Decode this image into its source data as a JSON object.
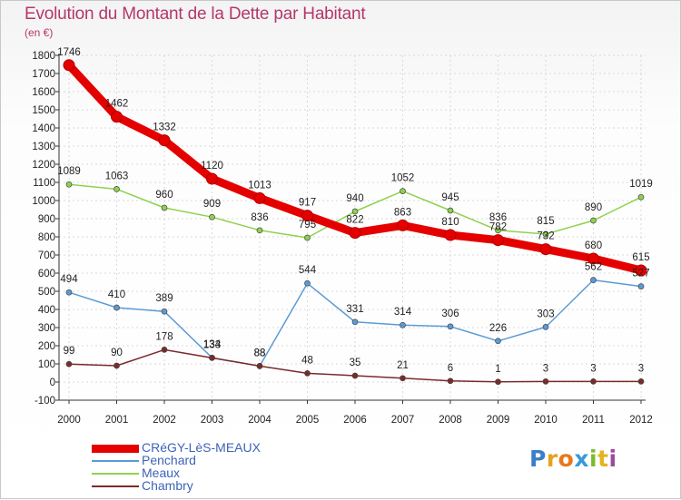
{
  "title": "Evolution du Montant de la Dette par Habitant",
  "unit_label": "(en €)",
  "brand": {
    "letters": [
      "P",
      "r",
      "o",
      "x",
      "i",
      "t",
      "i"
    ],
    "colors": [
      "#3a7fc8",
      "#e7a21c",
      "#e8791a",
      "#3a9ad9",
      "#7cba2e",
      "#e6b422",
      "#9c4a9e"
    ]
  },
  "chart_data": {
    "type": "line",
    "x": [
      "2000",
      "2001",
      "2002",
      "2003",
      "2004",
      "2005",
      "2006",
      "2007",
      "2008",
      "2009",
      "2010",
      "2011",
      "2012"
    ],
    "ylim": [
      -100,
      1800
    ],
    "yticks": [
      "-100",
      "0",
      "100",
      "200",
      "300",
      "400",
      "500",
      "600",
      "700",
      "800",
      "900",
      "1000",
      "1100",
      "1200",
      "1300",
      "1400",
      "1500",
      "1600",
      "1700",
      "1800"
    ],
    "grid": true,
    "legend_position": "bottom-left",
    "series": [
      {
        "name": "CRéGY-LèS-MEAUX",
        "color": "#e50000",
        "emphasis": "thick",
        "values": [
          1746,
          1462,
          1332,
          1120,
          1013,
          917,
          822,
          863,
          810,
          782,
          732,
          680,
          615
        ],
        "labels": [
          "1746",
          "1462",
          "1332",
          "1120",
          "1013",
          "917",
          "822",
          "863",
          "810",
          "782",
          "732",
          "680",
          "615"
        ]
      },
      {
        "name": "Penchard",
        "color": "#5b9bd5",
        "values": [
          494,
          410,
          389,
          134,
          88,
          544,
          331,
          314,
          306,
          226,
          303,
          562,
          527
        ],
        "labels": [
          "494",
          "410",
          "389",
          "134",
          "88",
          "544",
          "331",
          "314",
          "306",
          "226",
          "303",
          "562",
          "527"
        ]
      },
      {
        "name": "Meaux",
        "color": "#8fd14f",
        "values": [
          1089,
          1063,
          960,
          909,
          836,
          795,
          940,
          1052,
          945,
          836,
          815,
          890,
          1019
        ],
        "labels": [
          "1089",
          "1063",
          "960",
          "909",
          "836",
          "795",
          "940",
          "1052",
          "945",
          "836",
          "815",
          "890",
          "1019"
        ]
      },
      {
        "name": "Chambry",
        "color": "#7b2a2a",
        "values": [
          99,
          90,
          178,
          133,
          88,
          48,
          35,
          21,
          6,
          1,
          3,
          3,
          3
        ],
        "labels": [
          "99",
          "90",
          "178",
          "133",
          "88",
          "48",
          "35",
          "21",
          "6",
          "1",
          "3",
          "3",
          "3"
        ]
      }
    ]
  }
}
